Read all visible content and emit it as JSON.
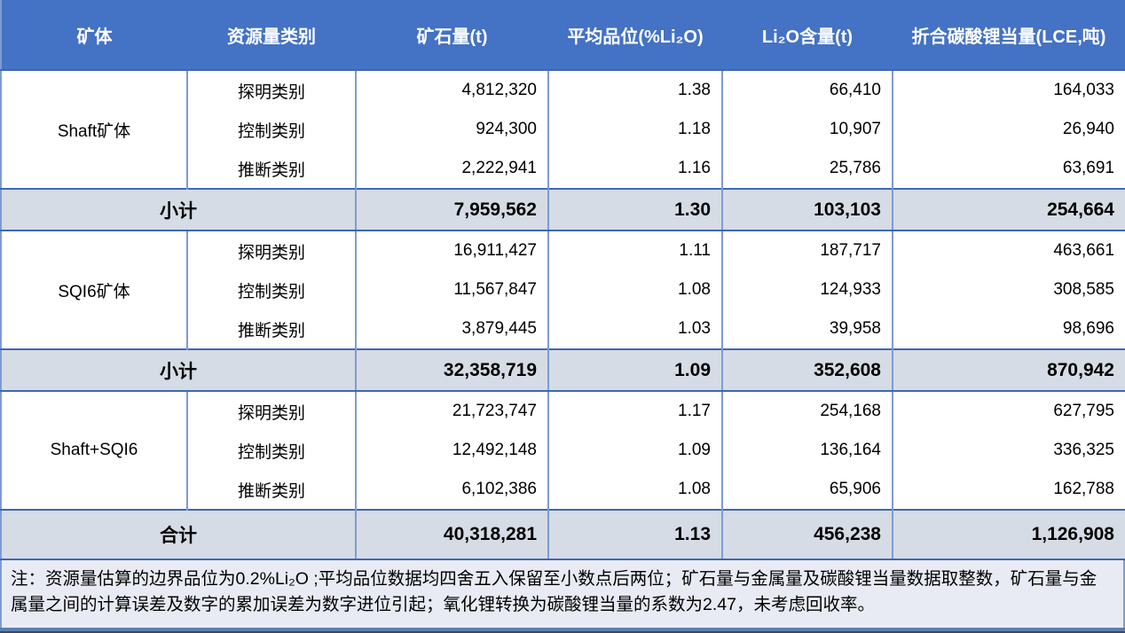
{
  "table": {
    "columns": [
      "矿体",
      "资源量类别",
      "矿石量(t)",
      "平均品位(%Li₂O)",
      "Li₂O含量(t)",
      "折合碳酸锂当量(LCE,吨)"
    ],
    "groups": [
      {
        "name": "Shaft矿体",
        "rows": [
          [
            "探明类别",
            "4,812,320",
            "1.38",
            "66,410",
            "164,033"
          ],
          [
            "控制类别",
            "924,300",
            "1.18",
            "10,907",
            "26,940"
          ],
          [
            "推断类别",
            "2,222,941",
            "1.16",
            "25,786",
            "63,691"
          ]
        ],
        "subtotal": {
          "label": "小计",
          "values": [
            "7,959,562",
            "1.30",
            "103,103",
            "254,664"
          ]
        }
      },
      {
        "name": "SQI6矿体",
        "rows": [
          [
            "探明类别",
            "16,911,427",
            "1.11",
            "187,717",
            "463,661"
          ],
          [
            "控制类别",
            "11,567,847",
            "1.08",
            "124,933",
            "308,585"
          ],
          [
            "推断类别",
            "3,879,445",
            "1.03",
            "39,958",
            "98,696"
          ]
        ],
        "subtotal": {
          "label": "小计",
          "values": [
            "32,358,719",
            "1.09",
            "352,608",
            "870,942"
          ]
        }
      },
      {
        "name": "Shaft+SQI6",
        "rows": [
          [
            "探明类别",
            "21,723,747",
            "1.17",
            "254,168",
            "627,795"
          ],
          [
            "控制类别",
            "12,492,148",
            "1.09",
            "136,164",
            "336,325"
          ],
          [
            "推断类别",
            "6,102,386",
            "1.08",
            "65,906",
            "162,788"
          ]
        ],
        "subtotal": {
          "label": "合计",
          "values": [
            "40,318,281",
            "1.13",
            "456,238",
            "1,126,908"
          ]
        }
      }
    ],
    "note": "注：资源量估算的边界品位为0.2%Li₂O ;平均品位数据均四舍五入保留至小数点后两位；矿石量与金属量及碳酸锂当量数据取整数，矿石量与金属量之间的计算误差及数字的累加误差为数字进位引起；氧化锂转换为碳酸锂当量的系数为2.47，未考虑回收率。"
  },
  "colors": {
    "header_bg": "#4472C4",
    "header_text": "#FFFFFF",
    "grid_line": "#7E9BD2",
    "section_border": "#3E68B2",
    "subtotal_bg": "#D6DCE5",
    "note_bg": "#E9EBF4"
  }
}
